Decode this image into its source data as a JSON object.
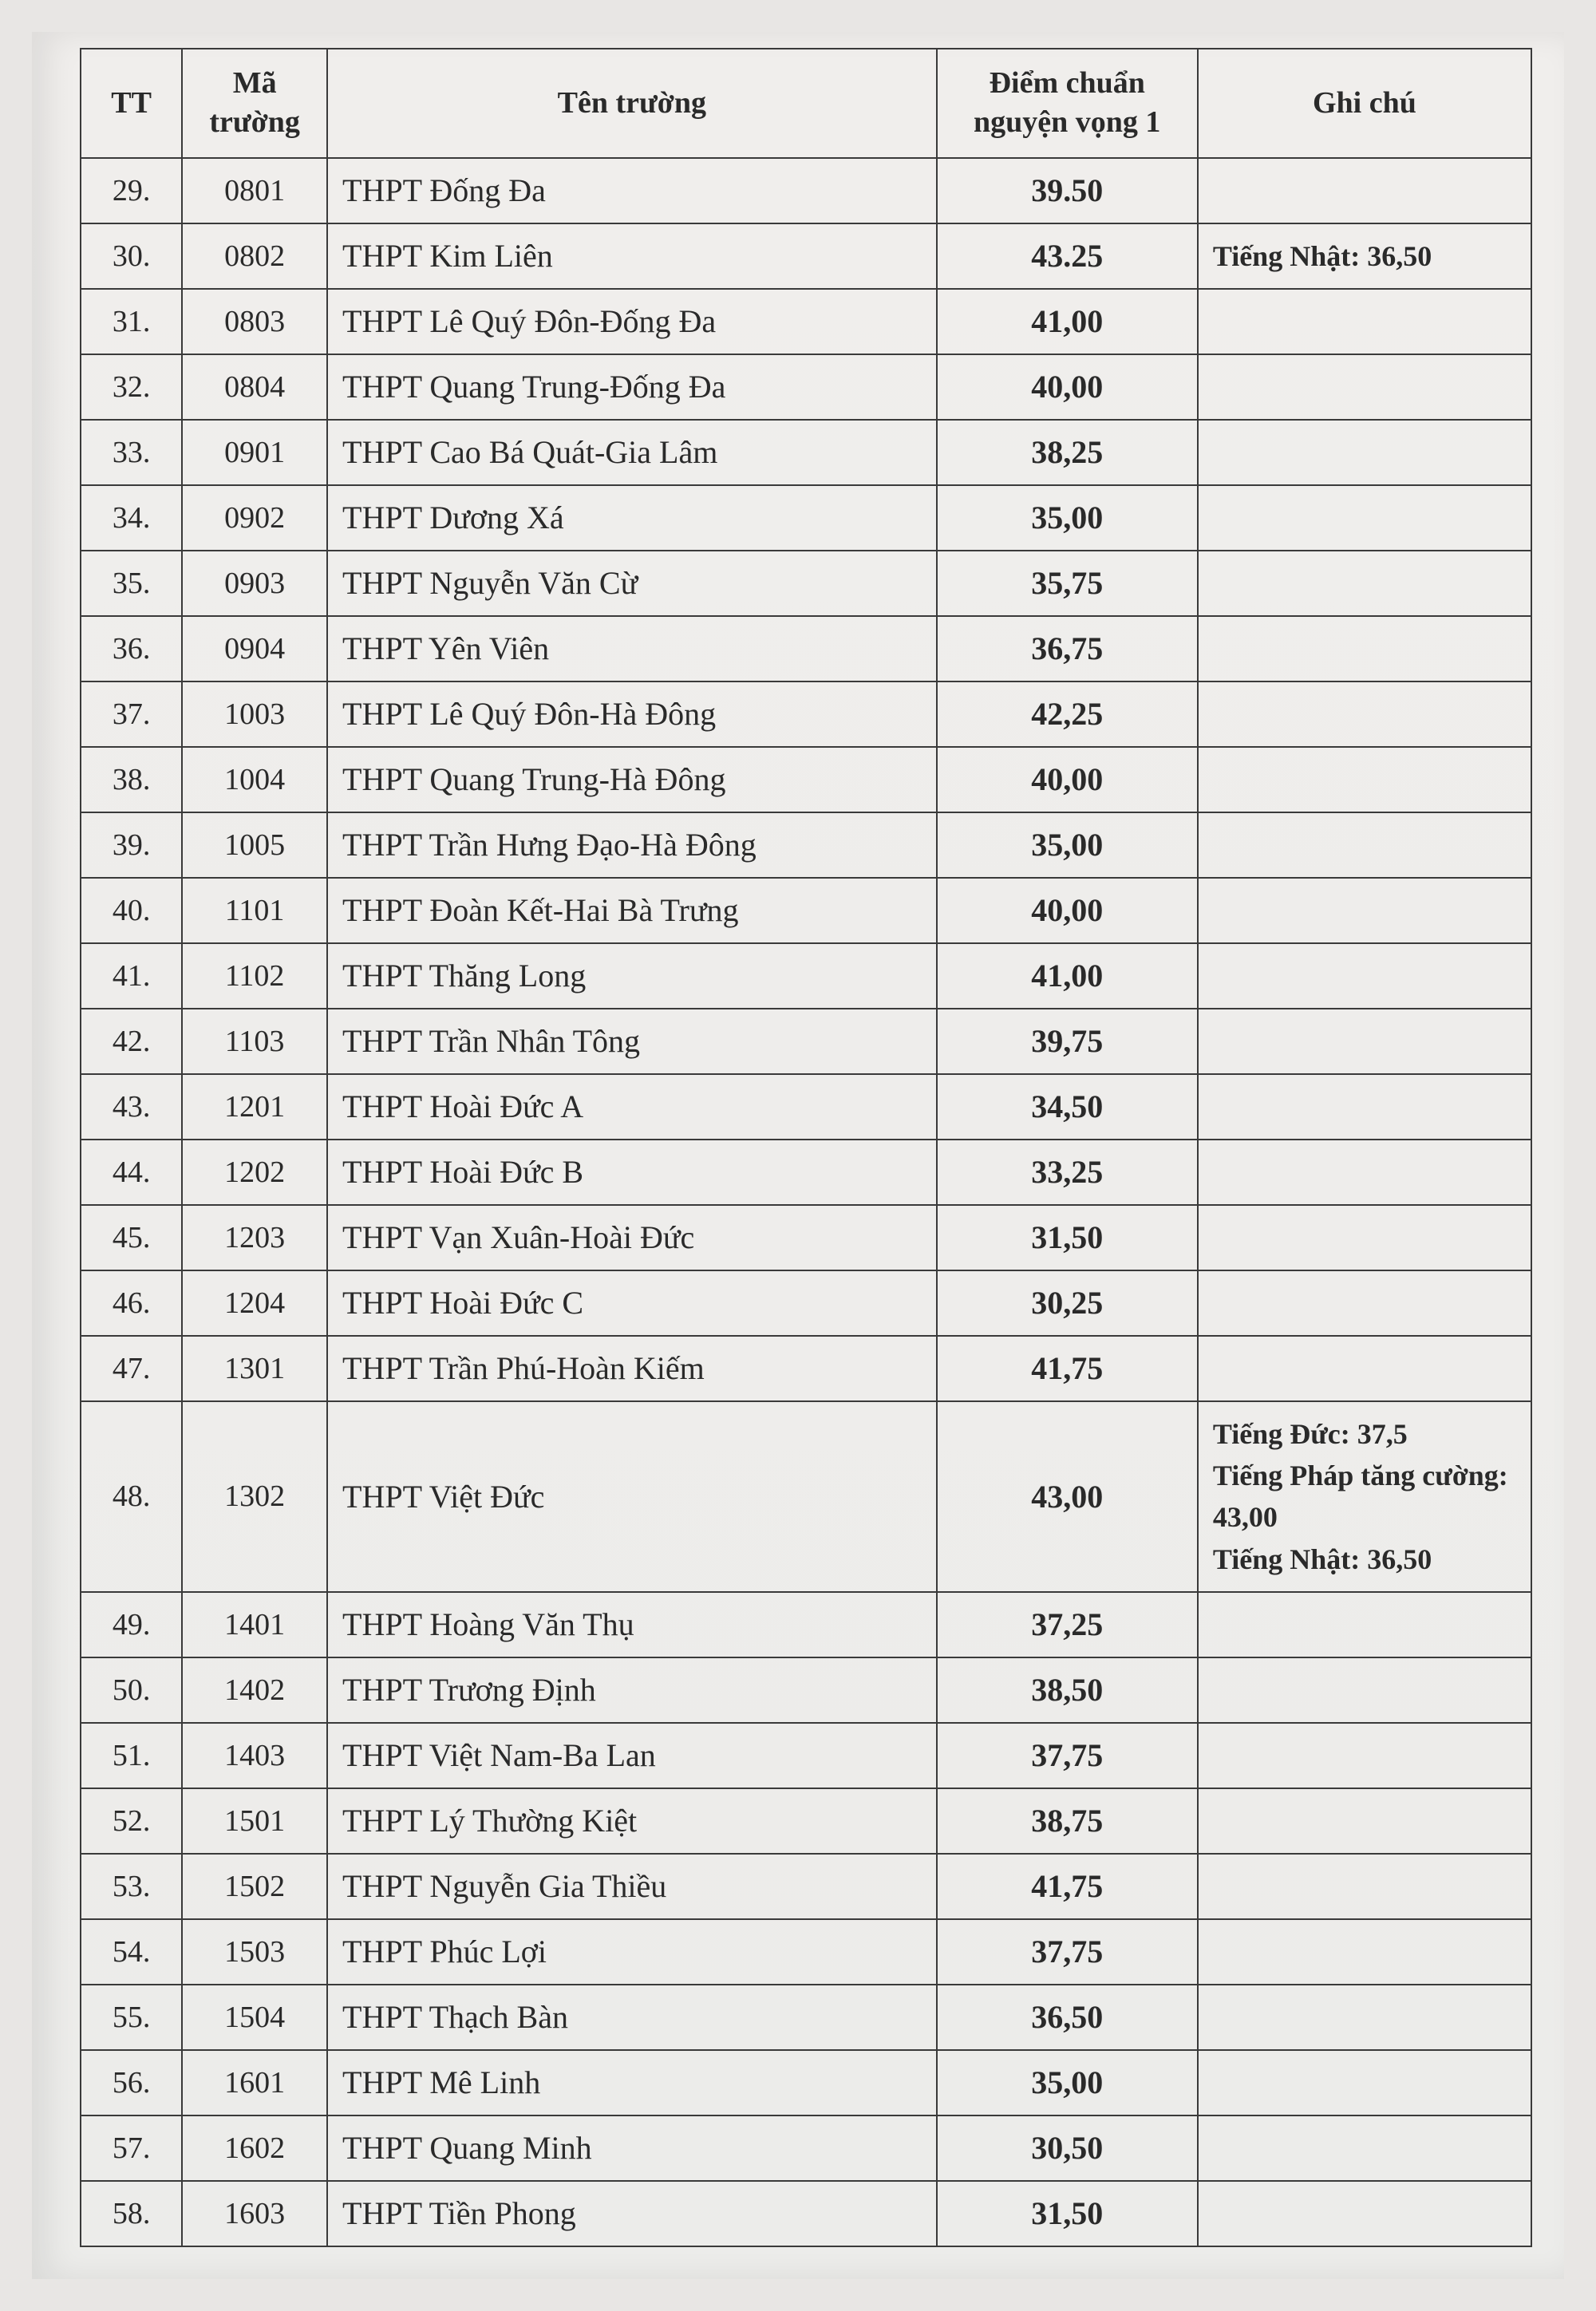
{
  "table": {
    "headers": {
      "tt": "TT",
      "code": "Mã trường",
      "name": "Tên trường",
      "score": "Điểm chuẩn nguyện vọng 1",
      "note": "Ghi chú"
    },
    "rows": [
      {
        "tt": "29.",
        "code": "0801",
        "name": "THPT Đống Đa",
        "score": "39.50",
        "note": ""
      },
      {
        "tt": "30.",
        "code": "0802",
        "name": "THPT Kim Liên",
        "score": "43.25",
        "note": "Tiếng Nhật: 36,50"
      },
      {
        "tt": "31.",
        "code": "0803",
        "name": "THPT Lê Quý Đôn-Đống Đa",
        "score": "41,00",
        "note": ""
      },
      {
        "tt": "32.",
        "code": "0804",
        "name": "THPT Quang Trung-Đống Đa",
        "score": "40,00",
        "note": ""
      },
      {
        "tt": "33.",
        "code": "0901",
        "name": "THPT Cao Bá Quát-Gia Lâm",
        "score": "38,25",
        "note": ""
      },
      {
        "tt": "34.",
        "code": "0902",
        "name": "THPT Dương Xá",
        "score": "35,00",
        "note": ""
      },
      {
        "tt": "35.",
        "code": "0903",
        "name": "THPT Nguyễn Văn Cừ",
        "score": "35,75",
        "note": ""
      },
      {
        "tt": "36.",
        "code": "0904",
        "name": "THPT Yên Viên",
        "score": "36,75",
        "note": ""
      },
      {
        "tt": "37.",
        "code": "1003",
        "name": "THPT Lê Quý Đôn-Hà Đông",
        "score": "42,25",
        "note": ""
      },
      {
        "tt": "38.",
        "code": "1004",
        "name": "THPT Quang Trung-Hà Đông",
        "score": "40,00",
        "note": ""
      },
      {
        "tt": "39.",
        "code": "1005",
        "name": "THPT Trần Hưng Đạo-Hà Đông",
        "score": "35,00",
        "note": ""
      },
      {
        "tt": "40.",
        "code": "1101",
        "name": "THPT Đoàn Kết-Hai Bà Trưng",
        "score": "40,00",
        "note": ""
      },
      {
        "tt": "41.",
        "code": "1102",
        "name": "THPT Thăng Long",
        "score": "41,00",
        "note": ""
      },
      {
        "tt": "42.",
        "code": "1103",
        "name": "THPT Trần Nhân Tông",
        "score": "39,75",
        "note": ""
      },
      {
        "tt": "43.",
        "code": "1201",
        "name": "THPT Hoài Đức A",
        "score": "34,50",
        "note": ""
      },
      {
        "tt": "44.",
        "code": "1202",
        "name": "THPT Hoài Đức B",
        "score": "33,25",
        "note": ""
      },
      {
        "tt": "45.",
        "code": "1203",
        "name": "THPT Vạn Xuân-Hoài Đức",
        "score": "31,50",
        "note": ""
      },
      {
        "tt": "46.",
        "code": "1204",
        "name": "THPT Hoài Đức C",
        "score": "30,25",
        "note": ""
      },
      {
        "tt": "47.",
        "code": "1301",
        "name": "THPT Trần Phú-Hoàn Kiếm",
        "score": "41,75",
        "note": ""
      },
      {
        "tt": "48.",
        "code": "1302",
        "name": "THPT Việt Đức",
        "score": "43,00",
        "note": "Tiếng Đức: 37,5\nTiếng Pháp tăng cường: 43,00\nTiếng Nhật: 36,50"
      },
      {
        "tt": "49.",
        "code": "1401",
        "name": "THPT Hoàng Văn Thụ",
        "score": "37,25",
        "note": ""
      },
      {
        "tt": "50.",
        "code": "1402",
        "name": "THPT Trương Định",
        "score": "38,50",
        "note": ""
      },
      {
        "tt": "51.",
        "code": "1403",
        "name": "THPT Việt Nam-Ba Lan",
        "score": "37,75",
        "note": ""
      },
      {
        "tt": "52.",
        "code": "1501",
        "name": "THPT Lý Thường Kiệt",
        "score": "38,75",
        "note": ""
      },
      {
        "tt": "53.",
        "code": "1502",
        "name": "THPT Nguyễn Gia Thiều",
        "score": "41,75",
        "note": ""
      },
      {
        "tt": "54.",
        "code": "1503",
        "name": "THPT Phúc Lợi",
        "score": "37,75",
        "note": ""
      },
      {
        "tt": "55.",
        "code": "1504",
        "name": "THPT Thạch Bàn",
        "score": "36,50",
        "note": ""
      },
      {
        "tt": "56.",
        "code": "1601",
        "name": "THPT Mê Linh",
        "score": "35,00",
        "note": ""
      },
      {
        "tt": "57.",
        "code": "1602",
        "name": "THPT Quang Minh",
        "score": "30,50",
        "note": ""
      },
      {
        "tt": "58.",
        "code": "1603",
        "name": "THPT Tiền Phong",
        "score": "31,50",
        "note": ""
      }
    ]
  }
}
